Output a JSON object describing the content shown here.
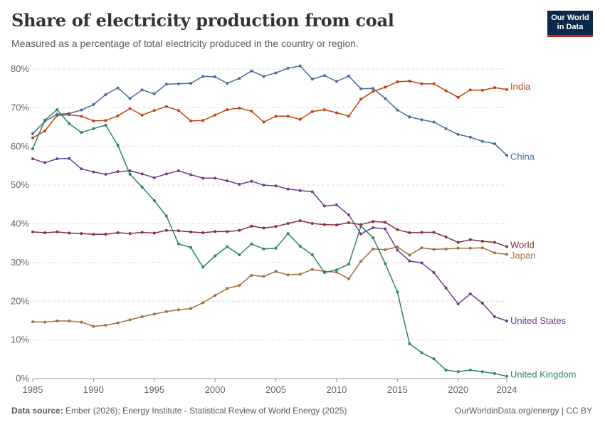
{
  "header": {
    "title": "Share of electricity production from coal",
    "subtitle": "Measured as a percentage of total electricity produced in the country or region.",
    "logo_line1": "Our World",
    "logo_line2": "in Data"
  },
  "footer": {
    "source_label": "Data source:",
    "source_text": " Ember (2026); Energy Institute - Statistical Review of World Energy (2025)",
    "right_text": "OurWorldinData.org/energy | CC BY"
  },
  "chart_data": {
    "type": "line",
    "title": "Share of electricity production from coal",
    "subtitle": "Measured as a percentage of total electricity produced in the country or region.",
    "ylim": [
      0,
      80
    ],
    "y_ticks": [
      0,
      10,
      20,
      30,
      40,
      50,
      60,
      70,
      80
    ],
    "y_tick_labels": [
      "0%",
      "10%",
      "20%",
      "30%",
      "40%",
      "50%",
      "60%",
      "70%",
      "80%"
    ],
    "xlim": [
      1985,
      2024
    ],
    "x_ticks": [
      1985,
      1990,
      1995,
      2000,
      2005,
      2010,
      2015,
      2020,
      2024
    ],
    "x_tick_labels": [
      "1985",
      "1990",
      "1995",
      "2000",
      "2005",
      "2010",
      "2015",
      "2020",
      "2024"
    ],
    "grid": "horizontal dashed",
    "legend": "labels at line ends (right)",
    "x": [
      1985,
      1986,
      1987,
      1988,
      1989,
      1990,
      1991,
      1992,
      1993,
      1994,
      1995,
      1996,
      1997,
      1998,
      1999,
      2000,
      2001,
      2002,
      2003,
      2004,
      2005,
      2006,
      2007,
      2008,
      2009,
      2010,
      2011,
      2012,
      2013,
      2014,
      2015,
      2016,
      2017,
      2018,
      2019,
      2020,
      2021,
      2022,
      2023,
      2024
    ],
    "series": [
      {
        "name": "India",
        "color": "#c1440e",
        "values": [
          62.2,
          64.0,
          68.0,
          68.2,
          67.8,
          66.6,
          66.7,
          67.9,
          69.8,
          68.1,
          69.3,
          70.3,
          69.3,
          66.6,
          66.7,
          68.1,
          69.5,
          69.9,
          69.1,
          66.3,
          67.8,
          67.8,
          67.0,
          69.0,
          69.5,
          68.7,
          67.8,
          72.2,
          74.2,
          75.3,
          76.7,
          76.9,
          76.2,
          76.2,
          74.4,
          72.7,
          74.6,
          74.5,
          75.2,
          74.7
        ]
      },
      {
        "name": "China",
        "color": "#4c6a9c",
        "values": [
          63.3,
          66.5,
          68.3,
          68.5,
          69.4,
          70.8,
          73.4,
          75.1,
          72.4,
          74.6,
          73.6,
          76.1,
          76.2,
          76.3,
          78.1,
          78.0,
          76.3,
          77.6,
          79.5,
          78.1,
          79.0,
          80.2,
          80.8,
          77.4,
          78.3,
          76.8,
          78.2,
          74.9,
          75.0,
          72.4,
          69.4,
          67.6,
          66.9,
          66.3,
          64.6,
          63.1,
          62.4,
          61.3,
          60.7,
          57.7
        ]
      },
      {
        "name": "World",
        "color": "#883039",
        "values": [
          37.9,
          37.7,
          37.9,
          37.6,
          37.5,
          37.3,
          37.3,
          37.7,
          37.5,
          37.8,
          37.6,
          38.3,
          38.2,
          37.9,
          37.7,
          38.0,
          38.0,
          38.3,
          39.4,
          38.9,
          39.3,
          40.1,
          40.8,
          40.1,
          39.8,
          39.7,
          40.3,
          39.8,
          40.6,
          40.4,
          38.5,
          37.7,
          37.8,
          37.8,
          36.6,
          35.2,
          35.9,
          35.5,
          35.2,
          34.1
        ]
      },
      {
        "name": "Japan",
        "color": "#a2703a",
        "values": [
          14.7,
          14.6,
          14.9,
          14.9,
          14.6,
          13.5,
          13.8,
          14.4,
          15.2,
          16.0,
          16.7,
          17.3,
          17.8,
          18.1,
          19.6,
          21.5,
          23.3,
          24.1,
          26.7,
          26.4,
          27.7,
          26.8,
          27.0,
          28.2,
          27.7,
          27.5,
          25.8,
          30.3,
          33.5,
          33.3,
          34.0,
          31.9,
          33.8,
          33.4,
          33.5,
          33.7,
          33.7,
          33.8,
          32.5,
          32.1
        ]
      },
      {
        "name": "United States",
        "color": "#6d3e91",
        "values": [
          56.8,
          55.8,
          56.8,
          56.9,
          54.2,
          53.4,
          52.8,
          53.5,
          53.7,
          52.9,
          51.9,
          52.9,
          53.7,
          52.7,
          51.8,
          51.8,
          51.1,
          50.2,
          51.0,
          50.0,
          49.8,
          49.0,
          48.6,
          48.3,
          44.6,
          44.9,
          42.3,
          37.4,
          39.0,
          38.7,
          33.2,
          30.4,
          29.9,
          27.4,
          23.4,
          19.3,
          21.9,
          19.5,
          16.0,
          14.9
        ]
      },
      {
        "name": "United Kingdom",
        "color": "#2c8465",
        "values": [
          59.4,
          66.8,
          69.5,
          65.9,
          63.6,
          64.6,
          65.5,
          60.3,
          52.8,
          49.5,
          46.0,
          42.0,
          34.8,
          33.9,
          28.8,
          31.7,
          34.1,
          32.0,
          34.8,
          33.5,
          33.7,
          37.5,
          34.2,
          32.0,
          27.4,
          28.1,
          29.6,
          39.4,
          36.4,
          29.7,
          22.4,
          9.0,
          6.7,
          5.1,
          2.2,
          1.8,
          2.2,
          1.8,
          1.3,
          0.6
        ]
      }
    ]
  }
}
